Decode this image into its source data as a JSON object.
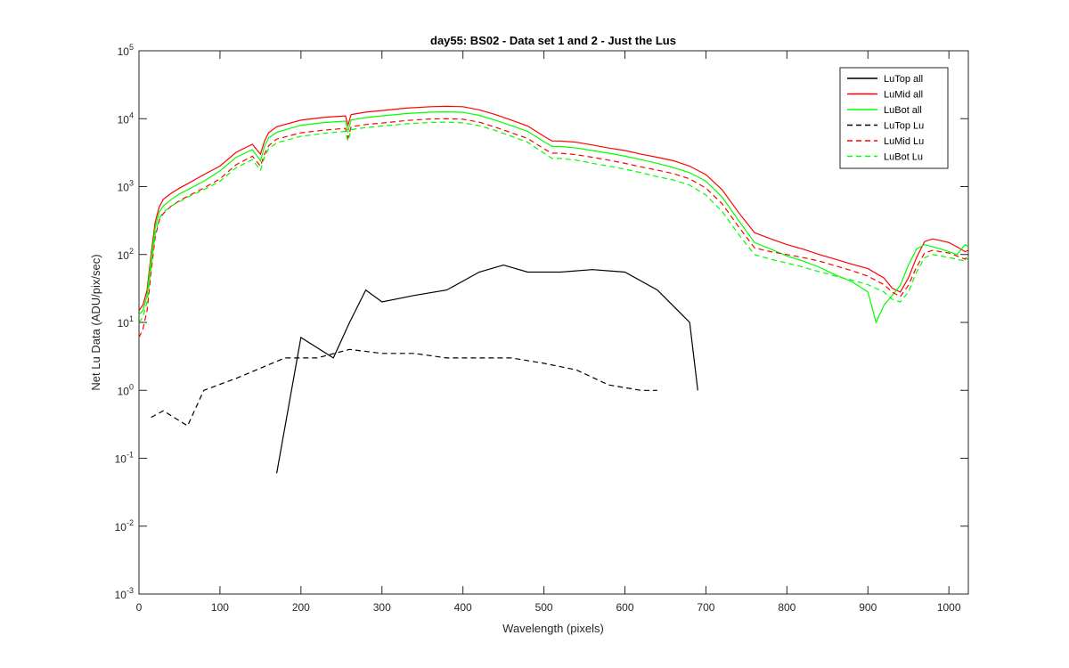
{
  "chart_data": {
    "type": "line",
    "title": "day55: BS02 - Data set 1 and 2 - Just the Lus",
    "xlabel": "Wavelength (pixels)",
    "ylabel": "Net Lu Data (ADU/pix/sec)",
    "xlim": [
      0,
      1024
    ],
    "ylim": [
      0.001,
      100000
    ],
    "yscale": "log",
    "x_ticks": [
      0,
      100,
      200,
      300,
      400,
      500,
      600,
      700,
      800,
      900,
      1000
    ],
    "x_tick_labels": [
      "0",
      "100",
      "200",
      "300",
      "400",
      "500",
      "600",
      "700",
      "800",
      "900",
      "1000"
    ],
    "y_ticks": [
      0.001,
      0.01,
      0.1,
      1,
      10,
      100,
      1000,
      10000,
      100000
    ],
    "y_tick_base": [
      "10",
      "10",
      "10",
      "10",
      "10",
      "10",
      "10",
      "10",
      "10"
    ],
    "y_tick_exp": [
      "-3",
      "-2",
      "-1",
      "0",
      "1",
      "2",
      "3",
      "4",
      "5"
    ],
    "legend_position": "top-right",
    "series": [
      {
        "name": "LuTop  all",
        "color": "#000000",
        "dash": "solid",
        "x": [
          170,
          200,
          240,
          260,
          280,
          300,
          340,
          380,
          420,
          450,
          480,
          520,
          560,
          600,
          640,
          680,
          690
        ],
        "y": [
          0.06,
          6,
          3,
          10,
          30,
          20,
          25,
          30,
          55,
          70,
          55,
          55,
          60,
          55,
          30,
          10,
          1
        ]
      },
      {
        "name": "LuMid  all",
        "color": "#ff0000",
        "dash": "solid",
        "x": [
          0,
          5,
          10,
          15,
          20,
          25,
          30,
          40,
          50,
          60,
          80,
          100,
          120,
          140,
          150,
          155,
          160,
          170,
          200,
          230,
          255,
          258,
          262,
          280,
          300,
          330,
          360,
          380,
          400,
          420,
          440,
          460,
          480,
          500,
          510,
          520,
          540,
          560,
          580,
          600,
          620,
          640,
          660,
          680,
          700,
          720,
          740,
          760,
          780,
          800,
          820,
          840,
          860,
          880,
          900,
          920,
          930,
          940,
          950,
          960,
          970,
          980,
          990,
          1000,
          1010,
          1020,
          1024
        ],
        "y": [
          15,
          18,
          30,
          100,
          300,
          500,
          650,
          800,
          950,
          1100,
          1500,
          2000,
          3200,
          4200,
          3000,
          4700,
          6200,
          7600,
          9500,
          10500,
          11000,
          8000,
          11500,
          12500,
          13200,
          14300,
          15000,
          15200,
          15000,
          13500,
          11500,
          9500,
          7800,
          5500,
          4700,
          4700,
          4500,
          4100,
          3700,
          3400,
          3000,
          2700,
          2400,
          2000,
          1500,
          900,
          420,
          210,
          170,
          140,
          120,
          100,
          85,
          72,
          62,
          45,
          32,
          28,
          45,
          90,
          155,
          170,
          160,
          150,
          130,
          110,
          115
        ]
      },
      {
        "name": "LuBot  all",
        "color": "#00ff00",
        "dash": "solid",
        "x": [
          0,
          5,
          10,
          15,
          20,
          25,
          30,
          40,
          50,
          60,
          80,
          100,
          120,
          140,
          150,
          155,
          160,
          170,
          200,
          230,
          255,
          258,
          262,
          280,
          300,
          330,
          360,
          380,
          400,
          420,
          440,
          460,
          480,
          500,
          510,
          520,
          540,
          560,
          580,
          600,
          620,
          640,
          660,
          680,
          700,
          720,
          740,
          760,
          780,
          800,
          820,
          840,
          860,
          880,
          900,
          910,
          920,
          930,
          940,
          950,
          960,
          970,
          980,
          990,
          1000,
          1010,
          1020,
          1024
        ],
        "y": [
          13,
          15,
          25,
          85,
          250,
          420,
          520,
          650,
          780,
          900,
          1200,
          1700,
          2700,
          3500,
          2400,
          3900,
          5200,
          6300,
          8000,
          8800,
          9200,
          6500,
          9600,
          10400,
          11000,
          11900,
          12500,
          12600,
          12400,
          11200,
          9500,
          7900,
          6500,
          4600,
          3900,
          3900,
          3700,
          3400,
          3100,
          2800,
          2500,
          2200,
          1900,
          1600,
          1200,
          700,
          320,
          150,
          120,
          95,
          80,
          65,
          50,
          40,
          28,
          10,
          18,
          25,
          35,
          70,
          120,
          140,
          130,
          120,
          110,
          100,
          140,
          130
        ]
      },
      {
        "name": "LuTop  Lu",
        "color": "#000000",
        "dash": "dashed",
        "x": [
          15,
          30,
          60,
          80,
          120,
          180,
          220,
          260,
          300,
          340,
          380,
          420,
          460,
          500,
          540,
          580,
          620,
          640
        ],
        "y": [
          0.4,
          0.5,
          0.3,
          1,
          1.5,
          3,
          3,
          4,
          3.5,
          3.5,
          3,
          3,
          3,
          2.5,
          2,
          1.2,
          1,
          1
        ]
      },
      {
        "name": "LuMid  Lu",
        "color": "#ff0000",
        "dash": "dashed",
        "x": [
          0,
          5,
          10,
          15,
          20,
          25,
          30,
          40,
          50,
          60,
          80,
          100,
          120,
          140,
          150,
          155,
          160,
          170,
          200,
          230,
          255,
          258,
          262,
          280,
          300,
          330,
          360,
          380,
          400,
          420,
          440,
          460,
          480,
          500,
          510,
          520,
          540,
          560,
          580,
          600,
          620,
          640,
          660,
          680,
          700,
          720,
          740,
          760,
          780,
          800,
          820,
          840,
          860,
          880,
          900,
          920,
          930,
          940,
          950,
          960,
          970,
          980,
          990,
          1000,
          1010,
          1020,
          1024
        ],
        "y": [
          6,
          8,
          15,
          55,
          180,
          320,
          400,
          520,
          620,
          720,
          950,
          1300,
          2100,
          2800,
          2000,
          3000,
          4000,
          5000,
          6200,
          6800,
          7200,
          5200,
          7600,
          8200,
          8600,
          9400,
          9900,
          10000,
          9800,
          8900,
          7500,
          6200,
          5100,
          3600,
          3100,
          3100,
          2950,
          2700,
          2450,
          2200,
          1950,
          1750,
          1550,
          1300,
          950,
          560,
          260,
          125,
          110,
          100,
          90,
          80,
          68,
          58,
          48,
          36,
          28,
          24,
          35,
          65,
          105,
          115,
          110,
          105,
          95,
          85,
          100
        ]
      },
      {
        "name": "LuBot  Lu",
        "color": "#00ff00",
        "dash": "dashed",
        "x": [
          0,
          5,
          10,
          15,
          20,
          25,
          30,
          40,
          50,
          60,
          80,
          100,
          120,
          140,
          150,
          155,
          160,
          170,
          200,
          230,
          255,
          258,
          262,
          280,
          300,
          330,
          360,
          380,
          400,
          420,
          440,
          460,
          480,
          500,
          510,
          520,
          540,
          560,
          580,
          600,
          620,
          640,
          660,
          680,
          700,
          720,
          740,
          760,
          780,
          800,
          820,
          840,
          860,
          880,
          900,
          920,
          930,
          940,
          950,
          960,
          970,
          980,
          990,
          1000,
          1010,
          1020,
          1024
        ],
        "y": [
          10,
          12,
          20,
          65,
          200,
          340,
          420,
          520,
          600,
          700,
          900,
          1200,
          1900,
          2500,
          1750,
          2700,
          3600,
          4400,
          5500,
          6100,
          6500,
          4700,
          6900,
          7400,
          7800,
          8400,
          8800,
          8900,
          8700,
          7900,
          6700,
          5500,
          4500,
          3100,
          2600,
          2600,
          2450,
          2200,
          2000,
          1800,
          1600,
          1400,
          1250,
          1050,
          750,
          430,
          200,
          100,
          85,
          75,
          65,
          56,
          48,
          42,
          36,
          28,
          22,
          20,
          28,
          55,
          90,
          100,
          95,
          90,
          85,
          80,
          90
        ]
      }
    ]
  }
}
